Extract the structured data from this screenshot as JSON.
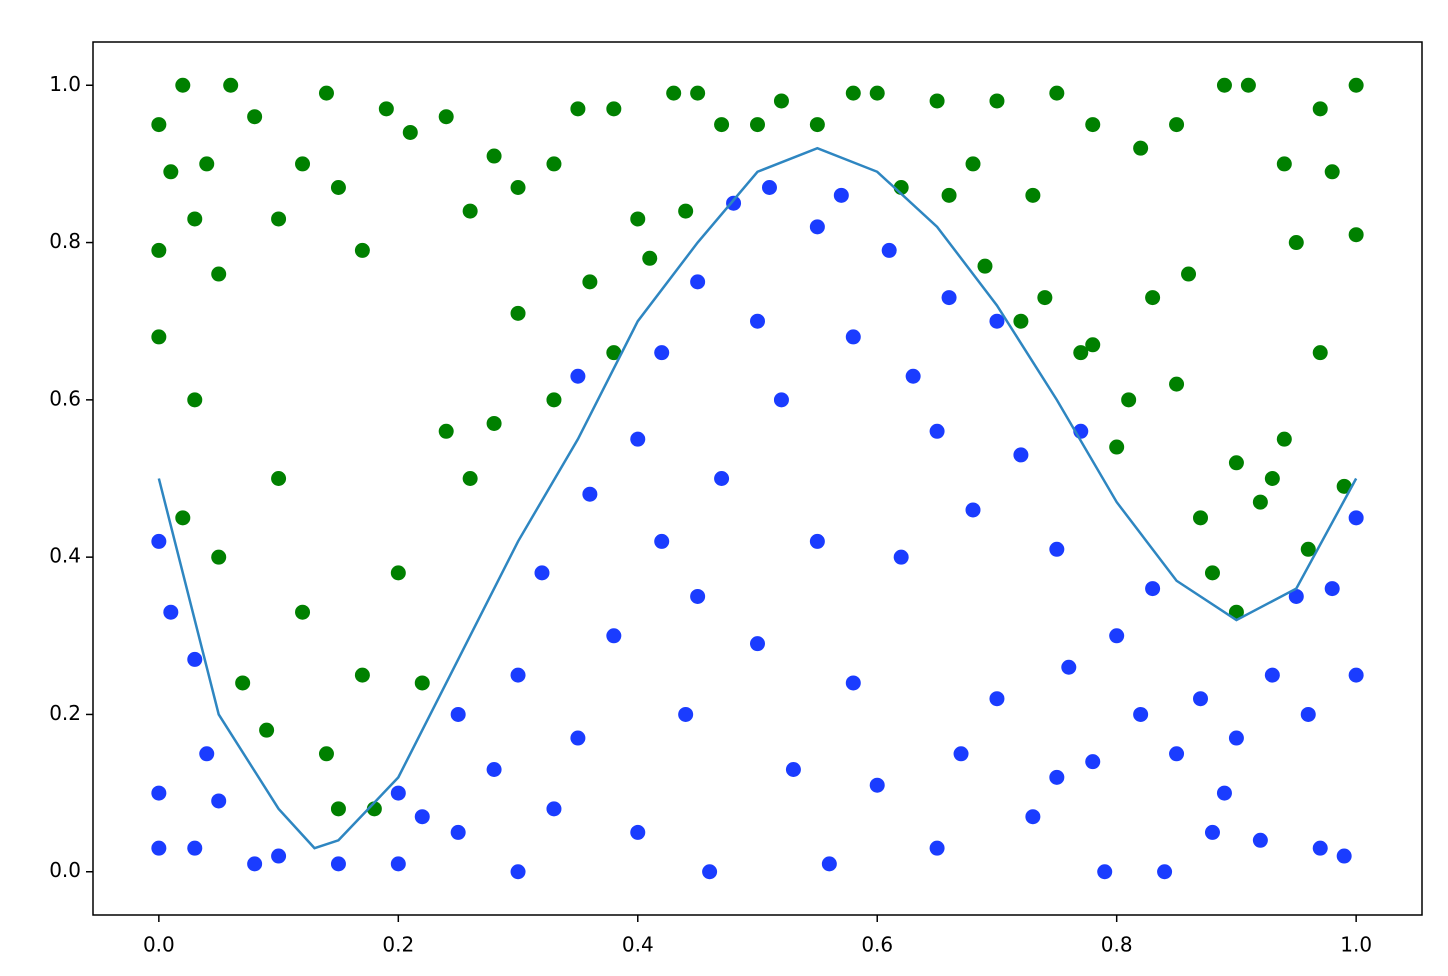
{
  "chart_data": {
    "type": "scatter",
    "xlim": [
      -0.055,
      1.055
    ],
    "ylim": [
      -0.055,
      1.055
    ],
    "xticks": [
      {
        "value": 0,
        "label": "0.0"
      },
      {
        "value": 0.2,
        "label": "0.2"
      },
      {
        "value": 0.4,
        "label": "0.4"
      },
      {
        "value": 0.6,
        "label": "0.6"
      },
      {
        "value": 0.8,
        "label": "0.8"
      },
      {
        "value": 1,
        "label": "1.0"
      }
    ],
    "yticks": [
      {
        "value": 0,
        "label": "0.0"
      },
      {
        "value": 0.2,
        "label": "0.2"
      },
      {
        "value": 0.4,
        "label": "0.4"
      },
      {
        "value": 0.6,
        "label": "0.6"
      },
      {
        "value": 0.8,
        "label": "0.8"
      },
      {
        "value": 1,
        "label": "1.0"
      }
    ],
    "grid": false,
    "series": [
      {
        "type": "scatter",
        "color": "#008000",
        "x": [
          0.0,
          0.02,
          0.04,
          0.06,
          0.0,
          0.01,
          0.03,
          0.05,
          0.08,
          0.1,
          0.12,
          0.14,
          0.15,
          0.19,
          0.17,
          0.21,
          0.24,
          0.26,
          0.28,
          0.3,
          0.33,
          0.35,
          0.38,
          0.4,
          0.43,
          0.45,
          0.47,
          0.52,
          0.55,
          0.58,
          0.62,
          0.65,
          0.68,
          0.7,
          0.73,
          0.75,
          0.78,
          0.82,
          0.85,
          0.89,
          0.91,
          0.94,
          0.97,
          1.0,
          1.0,
          0.98,
          0.95,
          0.0,
          0.02,
          0.03,
          0.05,
          0.07,
          0.09,
          0.1,
          0.12,
          0.14,
          0.15,
          0.17,
          0.18,
          0.2,
          0.22,
          0.24,
          0.26,
          0.28,
          0.3,
          0.33,
          0.36,
          0.38,
          0.41,
          0.44,
          0.66,
          0.69,
          0.72,
          0.74,
          0.77,
          0.8,
          0.83,
          0.85,
          0.87,
          0.9,
          0.92,
          0.94,
          0.96,
          0.99,
          0.97,
          0.88,
          0.9,
          0.93,
          0.81,
          0.78,
          0.86,
          0.6,
          0.5
        ],
        "values": [
          0.95,
          1.0,
          0.9,
          1.0,
          0.79,
          0.89,
          0.83,
          0.76,
          0.96,
          0.83,
          0.9,
          0.99,
          0.87,
          0.97,
          0.79,
          0.94,
          0.96,
          0.84,
          0.91,
          0.87,
          0.9,
          0.97,
          0.97,
          0.83,
          0.99,
          0.99,
          0.95,
          0.98,
          0.95,
          0.99,
          0.87,
          0.98,
          0.9,
          0.98,
          0.86,
          0.99,
          0.95,
          0.92,
          0.95,
          1.0,
          1.0,
          0.9,
          0.97,
          1.0,
          0.81,
          0.89,
          0.8,
          0.68,
          0.45,
          0.6,
          0.4,
          0.24,
          0.18,
          0.5,
          0.33,
          0.15,
          0.08,
          0.25,
          0.08,
          0.38,
          0.24,
          0.56,
          0.5,
          0.57,
          0.71,
          0.6,
          0.75,
          0.66,
          0.78,
          0.84,
          0.86,
          0.77,
          0.7,
          0.73,
          0.66,
          0.54,
          0.73,
          0.62,
          0.45,
          0.52,
          0.47,
          0.55,
          0.41,
          0.49,
          0.66,
          0.38,
          0.33,
          0.5,
          0.6,
          0.67,
          0.76,
          0.99,
          0.95
        ]
      },
      {
        "type": "scatter",
        "color": "#1a3cff",
        "x": [
          0.0,
          0.0,
          0.0,
          0.01,
          0.03,
          0.04,
          0.05,
          0.03,
          0.08,
          0.1,
          0.15,
          0.2,
          0.2,
          0.22,
          0.25,
          0.25,
          0.28,
          0.3,
          0.3,
          0.32,
          0.33,
          0.35,
          0.36,
          0.38,
          0.4,
          0.4,
          0.42,
          0.42,
          0.44,
          0.45,
          0.46,
          0.47,
          0.48,
          0.5,
          0.5,
          0.51,
          0.52,
          0.53,
          0.55,
          0.55,
          0.56,
          0.57,
          0.58,
          0.58,
          0.6,
          0.61,
          0.62,
          0.63,
          0.65,
          0.65,
          0.66,
          0.67,
          0.68,
          0.7,
          0.7,
          0.72,
          0.73,
          0.75,
          0.76,
          0.77,
          0.78,
          0.79,
          0.8,
          0.82,
          0.83,
          0.84,
          0.85,
          0.87,
          0.88,
          0.9,
          0.92,
          0.93,
          0.95,
          0.96,
          0.97,
          0.98,
          0.99,
          1.0,
          1.0,
          0.89,
          0.75,
          0.35,
          0.45
        ],
        "values": [
          0.42,
          0.1,
          0.03,
          0.33,
          0.27,
          0.15,
          0.09,
          0.03,
          0.01,
          0.02,
          0.01,
          0.01,
          0.1,
          0.07,
          0.05,
          0.2,
          0.13,
          0.25,
          0.0,
          0.38,
          0.08,
          0.17,
          0.48,
          0.3,
          0.05,
          0.55,
          0.42,
          0.66,
          0.2,
          0.75,
          0.0,
          0.5,
          0.85,
          0.7,
          0.29,
          0.87,
          0.6,
          0.13,
          0.82,
          0.42,
          0.01,
          0.86,
          0.24,
          0.68,
          0.11,
          0.79,
          0.4,
          0.63,
          0.03,
          0.56,
          0.73,
          0.15,
          0.46,
          0.7,
          0.22,
          0.53,
          0.07,
          0.41,
          0.26,
          0.56,
          0.14,
          0.0,
          0.3,
          0.2,
          0.36,
          0.0,
          0.15,
          0.22,
          0.05,
          0.17,
          0.04,
          0.25,
          0.35,
          0.2,
          0.03,
          0.36,
          0.02,
          0.45,
          0.25,
          0.1,
          0.12,
          0.63,
          0.35
        ]
      },
      {
        "type": "line",
        "color": "#2e86c1",
        "x": [
          0,
          0.05,
          0.1,
          0.13,
          0.15,
          0.2,
          0.25,
          0.3,
          0.35,
          0.4,
          0.45,
          0.5,
          0.55,
          0.6,
          0.65,
          0.7,
          0.75,
          0.8,
          0.85,
          0.9,
          0.95,
          1.0
        ],
        "values": [
          0.5,
          0.2,
          0.08,
          0.03,
          0.04,
          0.12,
          0.27,
          0.42,
          0.55,
          0.7,
          0.8,
          0.89,
          0.92,
          0.89,
          0.82,
          0.72,
          0.6,
          0.47,
          0.37,
          0.32,
          0.36,
          0.5
        ]
      }
    ]
  }
}
